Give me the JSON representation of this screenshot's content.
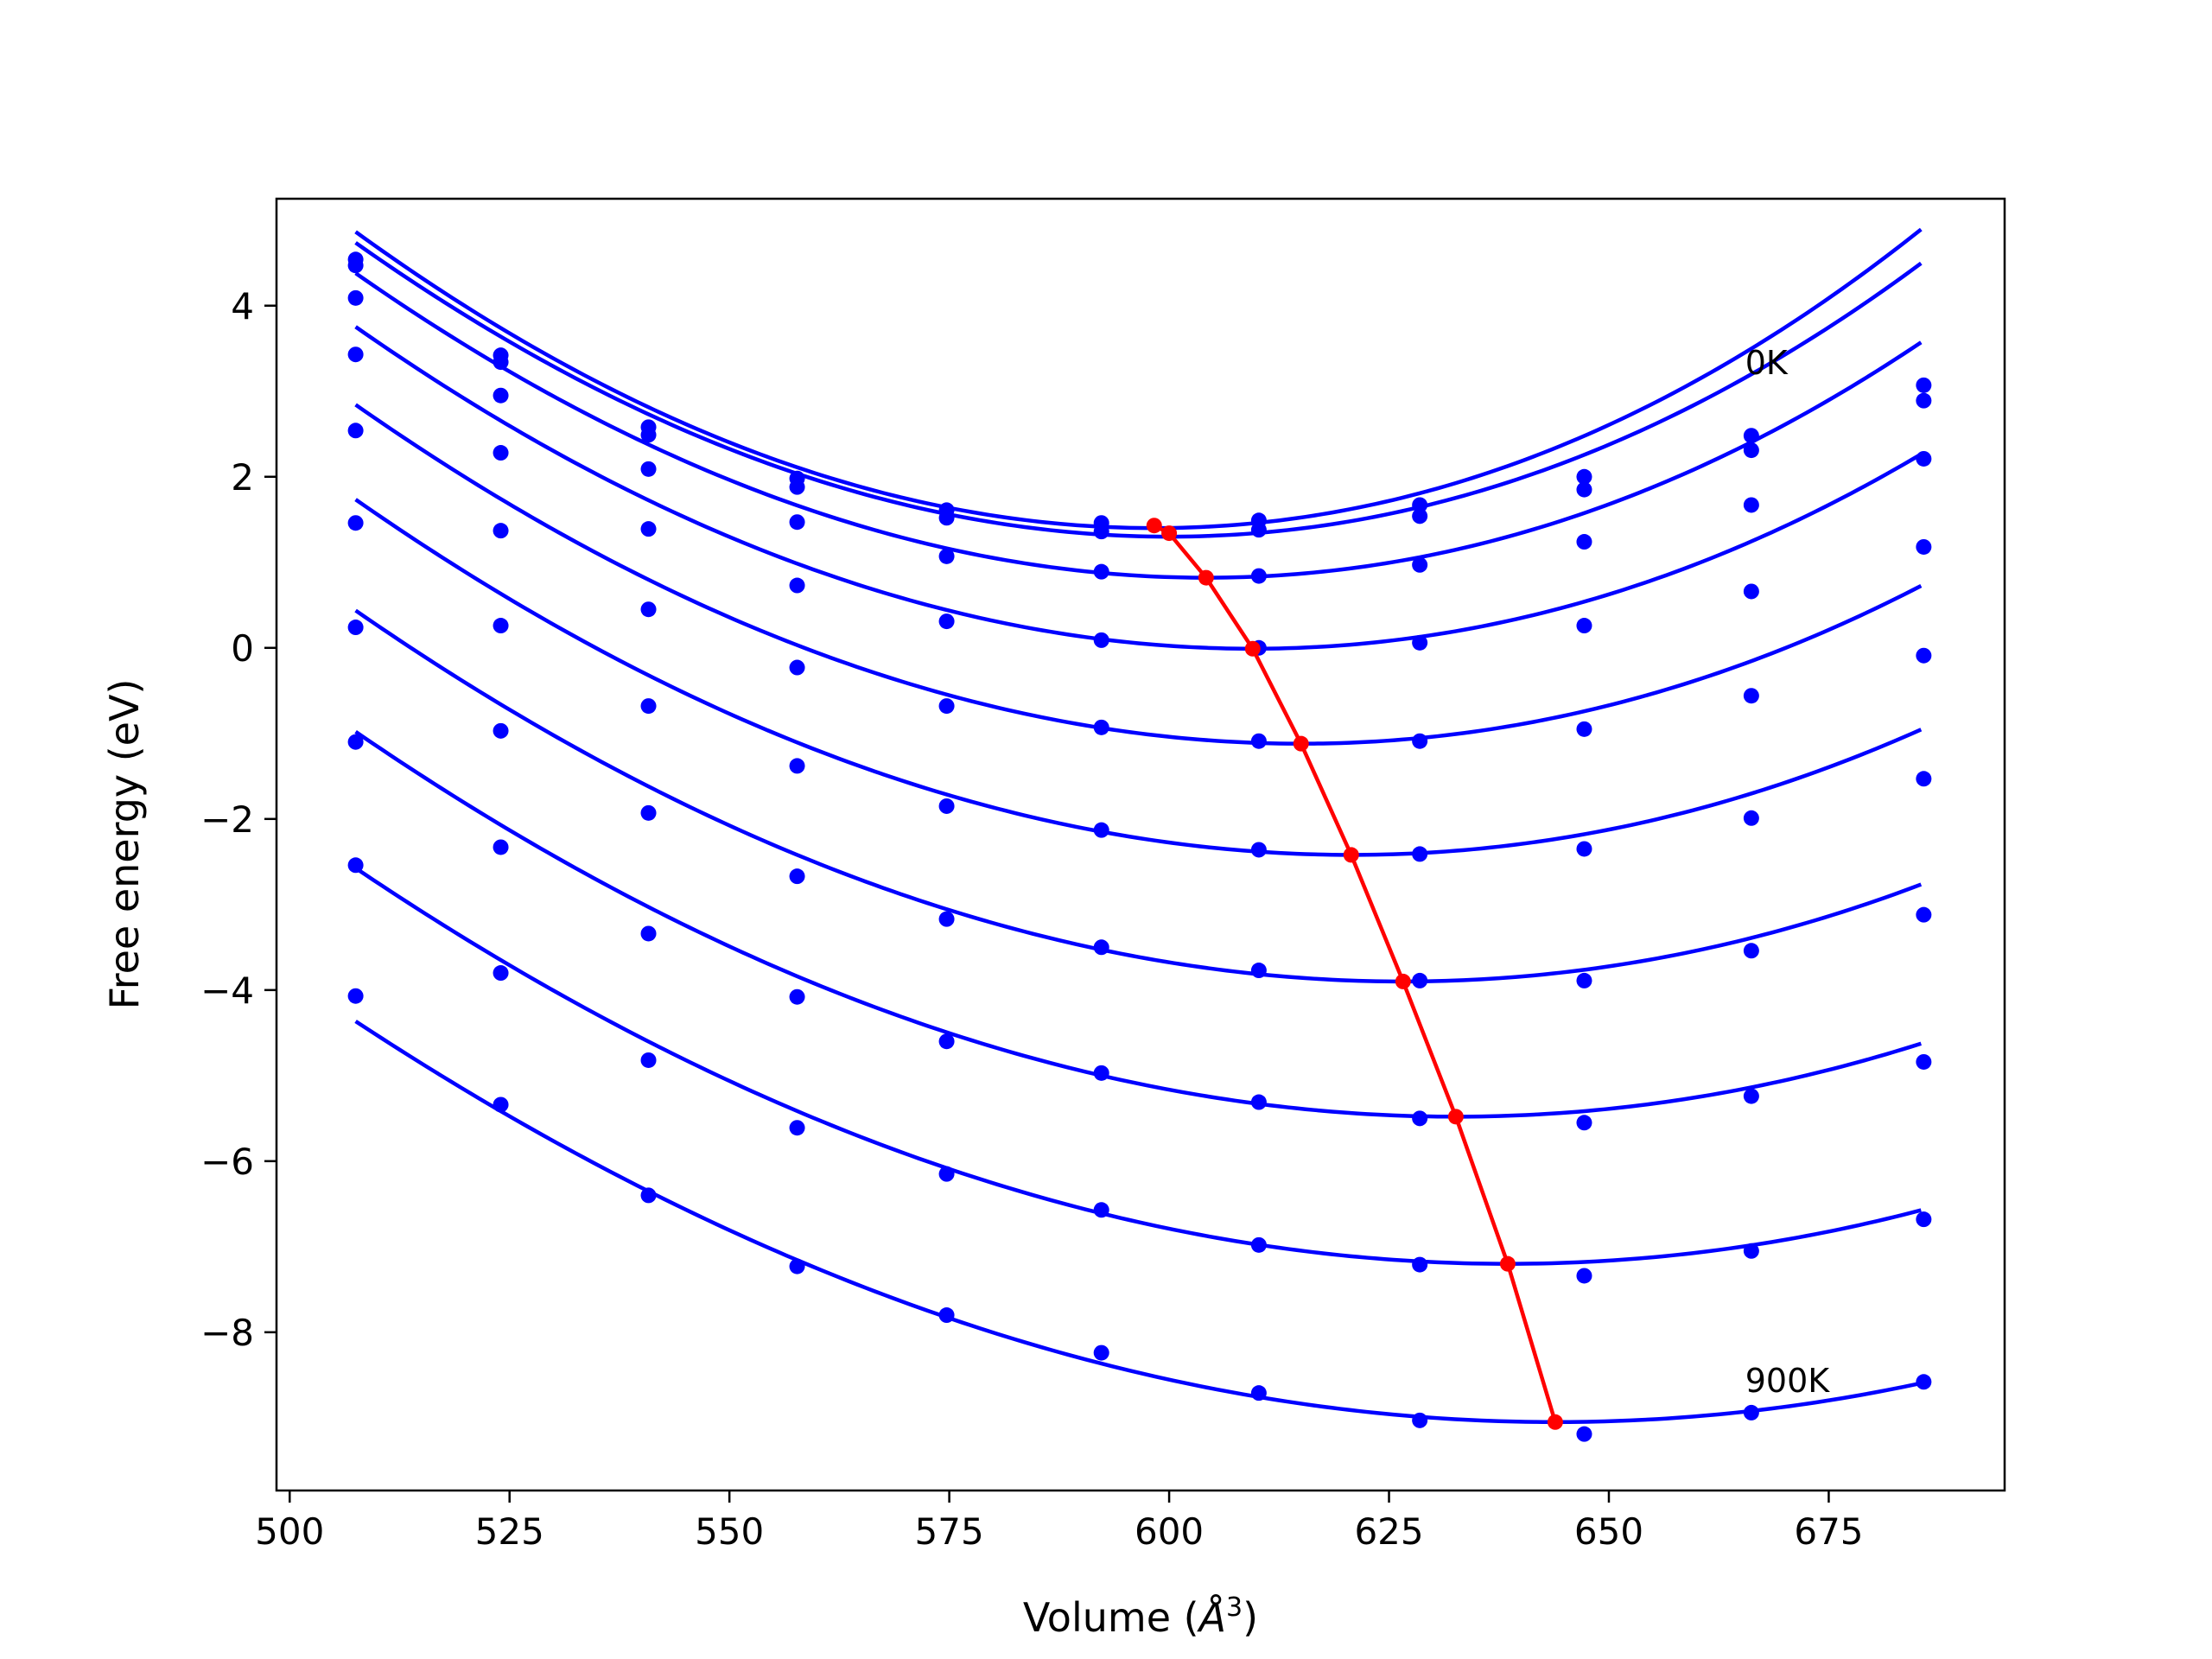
{
  "chart_data": {
    "type": "line",
    "xlabel_prefix": "Volume (",
    "xlabel_unit_base": "Å",
    "xlabel_unit_exp": "3",
    "xlabel_suffix": ")",
    "ylabel": "Free energy (eV)",
    "xlim": [
      498.5,
      695
    ],
    "ylim": [
      -9.85,
      5.25
    ],
    "xticks": [
      500,
      525,
      550,
      575,
      600,
      625,
      650,
      675
    ],
    "xtick_labels": [
      "500",
      "525",
      "550",
      "575",
      "600",
      "625",
      "650",
      "675"
    ],
    "yticks": [
      -8,
      -6,
      -4,
      -2,
      0,
      2,
      4
    ],
    "ytick_labels": [
      "−8",
      "−6",
      "−4",
      "−2",
      "0",
      "2",
      "4"
    ],
    "annotations": [
      {
        "text": "0K",
        "x": 665.5,
        "y": 3.2
      },
      {
        "text": "900K",
        "x": 665.5,
        "y": -8.7
      }
    ],
    "series_color": "#0000ff",
    "min_line_color": "#ff0000",
    "volumes": [
      507.5,
      524,
      540.8,
      557.7,
      574.7,
      592.3,
      610.2,
      628.5,
      647.2,
      666.2,
      685.8
    ],
    "series": [
      {
        "points": [
          4.54,
          3.42,
          2.58,
          1.98,
          1.61,
          1.46,
          1.49,
          1.67,
          2.0,
          2.48,
          3.07
        ],
        "fit": [
          1.4,
          598.3,
          0.00044,
          2.2e-07
        ]
      },
      {
        "points": [
          4.47,
          3.34,
          2.49,
          1.88,
          1.52,
          1.36,
          1.38,
          1.54,
          1.85,
          2.31,
          2.89
        ],
        "fit": [
          1.3,
          600.0,
          0.00042,
          2e-07
        ]
      },
      {
        "points": [
          4.09,
          2.95,
          2.09,
          1.47,
          1.07,
          0.89,
          0.84,
          0.97,
          1.24,
          1.67,
          2.21
        ],
        "fit": [
          0.82,
          604.2,
          0.0004,
          2e-07
        ]
      },
      {
        "points": [
          3.43,
          2.28,
          1.39,
          0.73,
          0.31,
          0.09,
          0.0,
          0.06,
          0.26,
          0.66,
          1.18
        ],
        "fit": [
          -0.01,
          609.5,
          0.00038,
          1.8e-07
        ]
      },
      {
        "points": [
          2.54,
          1.37,
          0.45,
          -0.23,
          -0.68,
          -0.93,
          -1.09,
          -1.09,
          -0.95,
          -0.56,
          -0.09
        ],
        "fit": [
          -1.12,
          615.0,
          0.00036,
          1.6e-07
        ]
      },
      {
        "points": [
          1.46,
          0.26,
          -0.68,
          -1.38,
          -1.85,
          -2.13,
          -2.36,
          -2.41,
          -2.35,
          -1.99,
          -1.53
        ],
        "fit": [
          -2.42,
          620.7,
          0.00034,
          1.4e-07
        ]
      },
      {
        "points": [
          0.24,
          -0.97,
          -1.93,
          -2.67,
          -3.17,
          -3.5,
          -3.77,
          -3.89,
          -3.89,
          -3.54,
          -3.12
        ],
        "fit": [
          -3.9,
          626.6,
          0.00032,
          1.2e-07
        ]
      },
      {
        "points": [
          -1.1,
          -2.33,
          -3.34,
          -4.08,
          -4.6,
          -4.97,
          -5.31,
          -5.5,
          -5.55,
          -5.24,
          -4.84
        ],
        "fit": [
          -5.48,
          632.6,
          0.0003,
          1e-07
        ]
      },
      {
        "points": [
          -2.54,
          -3.8,
          -4.82,
          -5.61,
          -6.15,
          -6.57,
          -6.98,
          -7.21,
          -7.34,
          -7.05,
          -6.68
        ],
        "fit": [
          -7.2,
          638.5,
          0.00028,
          8e-08
        ]
      },
      {
        "points": [
          -4.07,
          -5.34,
          -6.4,
          -7.23,
          -7.8,
          -8.24,
          -8.71,
          -9.03,
          -9.19,
          -8.94,
          -8.58
        ],
        "fit": [
          -9.05,
          643.9,
          0.00026,
          6e-08
        ]
      }
    ],
    "minimum_curve": {
      "x": [
        598.3,
        600.0,
        604.2,
        609.5,
        615.0,
        620.7,
        626.6,
        632.6,
        638.5,
        643.9
      ],
      "y": [
        1.43,
        1.34,
        0.82,
        -0.01,
        -1.12,
        -2.42,
        -3.9,
        -5.48,
        -7.2,
        -9.05
      ]
    }
  }
}
